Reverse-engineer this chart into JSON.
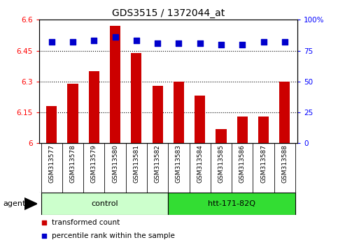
{
  "title": "GDS3515 / 1372044_at",
  "samples": [
    "GSM313577",
    "GSM313578",
    "GSM313579",
    "GSM313580",
    "GSM313581",
    "GSM313582",
    "GSM313583",
    "GSM313584",
    "GSM313585",
    "GSM313586",
    "GSM313587",
    "GSM313588"
  ],
  "bar_values": [
    6.18,
    6.29,
    6.35,
    6.57,
    6.44,
    6.28,
    6.3,
    6.23,
    6.07,
    6.13,
    6.13,
    6.3
  ],
  "percentile_values": [
    82,
    82,
    83,
    86,
    83,
    81,
    81,
    81,
    80,
    80,
    82,
    82
  ],
  "bar_color": "#cc0000",
  "dot_color": "#0000cc",
  "ylim_left": [
    6.0,
    6.6
  ],
  "ylim_right": [
    0,
    100
  ],
  "yticks_left": [
    6.0,
    6.15,
    6.3,
    6.45,
    6.6
  ],
  "yticks_right": [
    0,
    25,
    50,
    75,
    100
  ],
  "ytick_labels_left": [
    "6",
    "6.15",
    "6.3",
    "6.45",
    "6.6"
  ],
  "ytick_labels_right": [
    "0",
    "25",
    "50",
    "75",
    "100%"
  ],
  "hlines": [
    6.15,
    6.3,
    6.45
  ],
  "groups": [
    {
      "label": "control",
      "start": 0,
      "end": 5,
      "color": "#ccffcc"
    },
    {
      "label": "htt-171-82Q",
      "start": 6,
      "end": 11,
      "color": "#33dd33"
    }
  ],
  "agent_label": "agent",
  "legend_items": [
    {
      "label": "transformed count",
      "color": "#cc0000"
    },
    {
      "label": "percentile rank within the sample",
      "color": "#0000cc"
    }
  ],
  "background_color": "#ffffff",
  "plot_bg_color": "#ffffff",
  "bar_width": 0.5,
  "dot_size": 35,
  "fontsize_title": 10,
  "fontsize_ticks": 7.5,
  "fontsize_xticks": 6.5,
  "fontsize_legend": 7.5,
  "fontsize_group": 8,
  "fontsize_agent": 8
}
